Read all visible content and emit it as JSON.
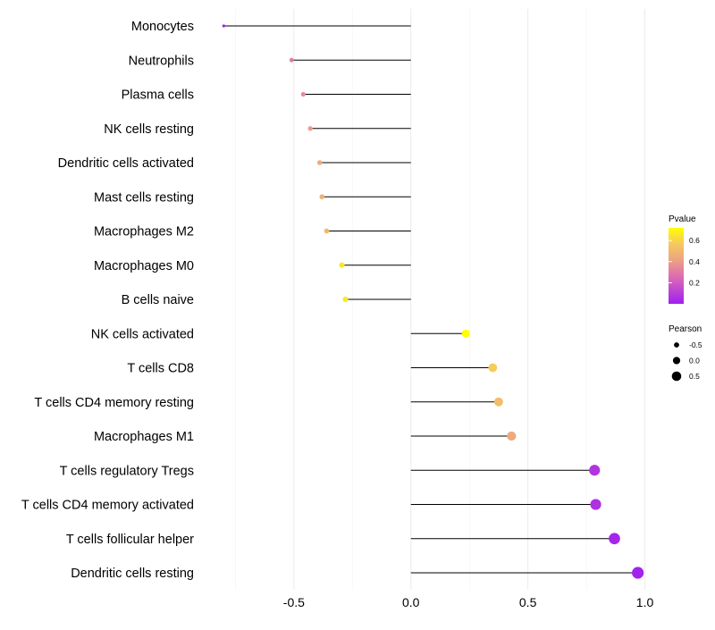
{
  "chart_data": {
    "type": "lollipop",
    "title": "",
    "xlabel": "",
    "ylabel": "",
    "xlim": [
      -0.87,
      1.04
    ],
    "x_ticks": [
      {
        "value": -0.5,
        "label": "-0.5"
      },
      {
        "value": 0.0,
        "label": "0.0"
      },
      {
        "value": 0.5,
        "label": "0.5"
      },
      {
        "value": 1.0,
        "label": "1.0"
      }
    ],
    "categories": [
      "Monocytes",
      "Neutrophils",
      "Plasma cells",
      "NK cells resting",
      "Dendritic cells activated",
      "Mast cells resting",
      "Macrophages M2",
      "Macrophages M0",
      "B cells naive",
      "NK cells activated",
      "T cells CD8",
      "T cells CD4 memory resting",
      "Macrophages M1",
      "T cells regulatory  Tregs ",
      "T cells CD4 memory activated",
      "T cells follicular helper",
      "Dendritic cells resting"
    ],
    "pearson": [
      -0.8,
      -0.51,
      -0.46,
      -0.43,
      -0.39,
      -0.38,
      -0.36,
      -0.295,
      -0.28,
      0.235,
      0.35,
      0.375,
      0.43,
      0.785,
      0.79,
      0.87,
      0.97
    ],
    "pvalue": [
      0.005,
      0.31,
      0.35,
      0.4,
      0.45,
      0.47,
      0.5,
      0.66,
      0.66,
      0.72,
      0.58,
      0.52,
      0.44,
      0.07,
      0.06,
      0.02,
      0.01
    ],
    "legend": {
      "color": {
        "title": "Pvalue",
        "ticks": [
          {
            "value": 0.6,
            "label": "0.6"
          },
          {
            "value": 0.4,
            "label": "0.4"
          },
          {
            "value": 0.2,
            "label": "0.2"
          }
        ],
        "range": [
          0.0,
          0.72
        ],
        "colors": [
          "#a020f0",
          "#ffff00"
        ]
      },
      "size": {
        "title": "Pearson",
        "entries": [
          {
            "value": -0.5,
            "label": "-0.5"
          },
          {
            "value": 0.0,
            "label": "0.0"
          },
          {
            "value": 0.5,
            "label": "0.5"
          }
        ]
      },
      "position": "right"
    },
    "grid": true
  }
}
